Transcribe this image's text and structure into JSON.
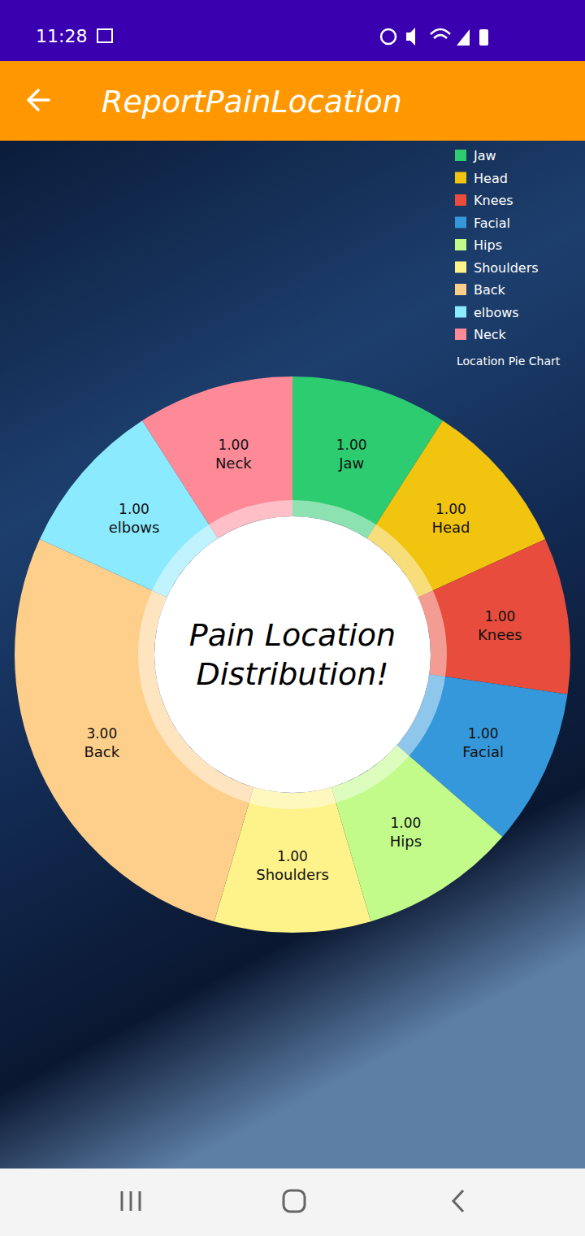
{
  "status_bar": {
    "time": "11:28"
  },
  "app_bar": {
    "title": "ReportPainLocation"
  },
  "chart_data": {
    "type": "pie",
    "title": "Pain Location Distribution!",
    "categories": [
      "Jaw",
      "Head",
      "Knees",
      "Facial",
      "Hips",
      "Shoulders",
      "Back",
      "elbows",
      "Neck"
    ],
    "series": [
      {
        "name": "Location Pie Chart",
        "values": [
          1,
          1,
          1,
          1,
          1,
          1,
          3,
          1,
          1
        ],
        "value_labels": [
          "1.00",
          "1.00",
          "1.00",
          "1.00",
          "1.00",
          "1.00",
          "3.00",
          "1.00",
          "1.00"
        ],
        "colors": [
          "#2ecc71",
          "#f1c40f",
          "#e74c3c",
          "#3498db",
          "#c2fb8a",
          "#fdf38a",
          "#fecf8a",
          "#8ceafe",
          "#fe8a98"
        ]
      }
    ],
    "legend": "top-right",
    "data_labels": true
  }
}
